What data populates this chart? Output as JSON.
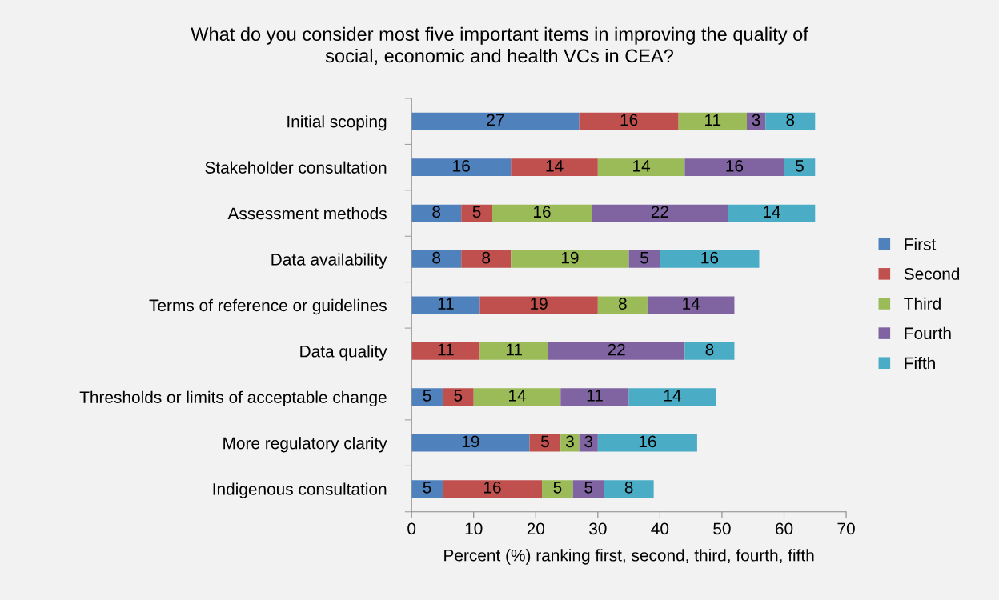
{
  "chart_data": {
    "type": "bar",
    "orientation": "horizontal",
    "stacked": true,
    "data_labels": true,
    "title": "What do you consider most five important items in improving the quality of\nsocial, economic and health VCs in CEA?",
    "xlabel": "Percent (%) ranking first, second, third, fourth, fifth",
    "categories": [
      "Initial scoping",
      "Stakeholder consultation",
      "Assessment methods",
      "Data availability",
      "Terms of reference or guidelines",
      "Data quality",
      "Thresholds or limits of acceptable change",
      "More regulatory clarity",
      "Indigenous consultation"
    ],
    "series": [
      {
        "name": "First",
        "color": "#4f81bd",
        "values": [
          27,
          16,
          8,
          8,
          11,
          null,
          5,
          19,
          5
        ]
      },
      {
        "name": "Second",
        "color": "#c0504d",
        "values": [
          16,
          14,
          5,
          8,
          19,
          11,
          5,
          5,
          16
        ]
      },
      {
        "name": "Third",
        "color": "#9bbb59",
        "values": [
          11,
          14,
          16,
          19,
          8,
          11,
          14,
          3,
          5
        ]
      },
      {
        "name": "Fourth",
        "color": "#8064a2",
        "values": [
          3,
          16,
          22,
          5,
          14,
          22,
          11,
          3,
          5
        ]
      },
      {
        "name": "Fifth",
        "color": "#4bacc6",
        "values": [
          8,
          5,
          14,
          16,
          null,
          8,
          14,
          16,
          8
        ]
      }
    ],
    "xlim": [
      0,
      70
    ],
    "xticks": [
      0,
      10,
      20,
      30,
      40,
      50,
      60,
      70
    ],
    "grid": false,
    "legend": "right"
  }
}
